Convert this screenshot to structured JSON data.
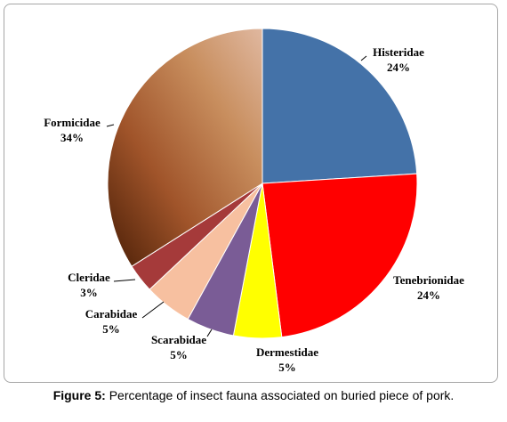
{
  "caption": {
    "figure_label": "Figure 5:",
    "text": "Percentage of insect fauna associated on buried piece of pork."
  },
  "chart_data": {
    "type": "pie",
    "title": "",
    "slices": [
      {
        "label": "Histeridae",
        "value": 24,
        "display": "24%",
        "color": "#4472a8"
      },
      {
        "label": "Tenebrionidae",
        "value": 24,
        "display": "24%",
        "color": "#ff0000"
      },
      {
        "label": "Dermestidae",
        "value": 5,
        "display": "5%",
        "color": "#ffff00"
      },
      {
        "label": "Scarabidae",
        "value": 5,
        "display": "5%",
        "color": "#7a5c96"
      },
      {
        "label": "Carabidae",
        "value": 5,
        "display": "5%",
        "color": "#f7c0a0"
      },
      {
        "label": "Cleridae",
        "value": 3,
        "display": "3%",
        "color": "#a53a3a"
      },
      {
        "label": "Formicidae",
        "value": 34,
        "display": "34%",
        "color": "#b06a3f"
      }
    ],
    "start_angle": "12 o'clock",
    "direction": "clockwise",
    "legend": "none"
  }
}
